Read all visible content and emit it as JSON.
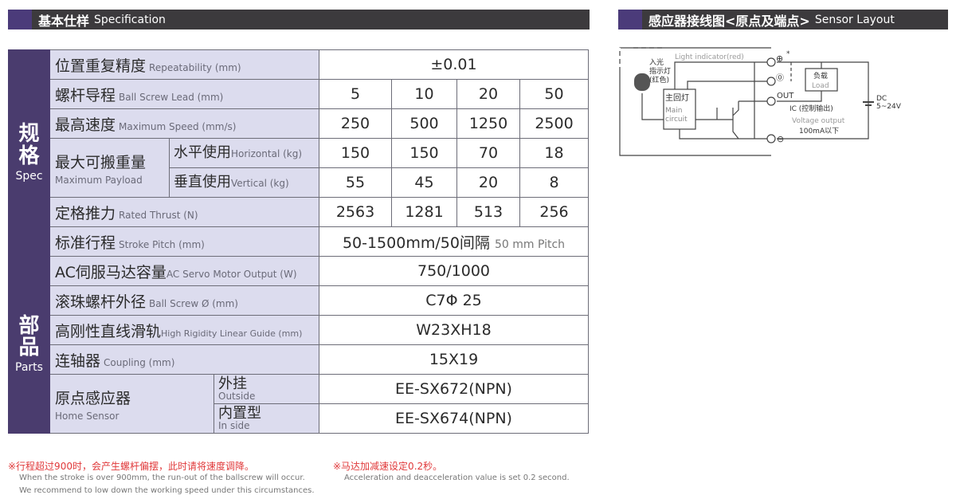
{
  "spec_header": {
    "zh": "基本仕样",
    "en": "Specification"
  },
  "sensor_header": {
    "zh": "感应器接线图<原点及端点>",
    "en": "Sensor Layout"
  },
  "sections": {
    "spec": {
      "zh": "规格",
      "en": "Spec"
    },
    "parts": {
      "zh": "部品",
      "en": "Parts"
    }
  },
  "rows": {
    "repeatability": {
      "zh": "位置重复精度",
      "en": "Repeatability (mm)",
      "value": "±0.01"
    },
    "lead": {
      "zh": "螺杆导程",
      "en": "Ball Screw Lead (mm)",
      "values": [
        "5",
        "10",
        "20",
        "50"
      ]
    },
    "speed": {
      "zh": "最高速度",
      "en": "Maximum Speed (mm/s)",
      "values": [
        "250",
        "500",
        "1250",
        "2500"
      ]
    },
    "payload": {
      "zh": "最大可搬重量",
      "en": "Maximum Payload",
      "horizontal": {
        "zh": "水平使用",
        "en": "Horizontal (kg)",
        "values": [
          "150",
          "150",
          "70",
          "18"
        ]
      },
      "vertical": {
        "zh": "垂直使用",
        "en": "Vertical (kg)",
        "values": [
          "55",
          "45",
          "20",
          "8"
        ]
      }
    },
    "thrust": {
      "zh": "定格推力",
      "en": "Rated Thrust (N)",
      "values": [
        "2563",
        "1281",
        "513",
        "256"
      ]
    },
    "stroke": {
      "zh": "标准行程",
      "en": "Stroke Pitch (mm)",
      "value": "50-1500mm/50间隔",
      "value_en": "50 mm Pitch"
    },
    "motor": {
      "zh": "AC伺服马达容量",
      "en": "AC Servo Motor Output (W)",
      "value": "750/1000"
    },
    "screw": {
      "zh": "滚珠螺杆外径",
      "en": "Ball Screw Ø (mm)",
      "value": "C7Φ 25"
    },
    "guide": {
      "zh": "高刚性直线滑轨",
      "en": "High Rigidity Linear Guide (mm)",
      "value": "W23XH18"
    },
    "coupling": {
      "zh": "连轴器",
      "en": "Coupling (mm)",
      "value": "15X19"
    },
    "sensor": {
      "zh": "原点感应器",
      "en": "Home Sensor",
      "outside": {
        "zh": "外挂",
        "en": "Outside",
        "value": "EE-SX672(NPN)"
      },
      "inside": {
        "zh": "内置型",
        "en": "In side",
        "value": "EE-SX674(NPN)"
      }
    }
  },
  "notes": {
    "n1_zh": "※行程超过900时，会产生螺杆偏摆，此时请将速度调降。",
    "n1_en1": "When the stroke is over 900mm, the run-out of the ballscrew will occur.",
    "n1_en2": "We recommend to low down the working speed under this circumstances.",
    "n2_zh": "※马达加减速设定0.2秒。",
    "n2_en": "Acceleration and deacceleration value is set 0.2 second."
  },
  "diagram": {
    "light_indicator": "Light indicator(red)",
    "led_zh1": "入光",
    "led_zh2": "指示灯",
    "led_zh3": "(红色)",
    "main_zh": "主回灯",
    "main_en1": "Main",
    "main_en2": "circuit",
    "plus": "⊕",
    "star": "*",
    "minus": "⊖",
    "ctrl": "⓪",
    "out": "OUT",
    "load_zh": "负载",
    "load_en": "Load",
    "ic": "IC (控制输出)",
    "voltage": "Voltage output",
    "current": "100mA以下",
    "dc": "DC",
    "dc_range": "5~24V"
  },
  "colors": {
    "header": "#3c3a3d",
    "accent": "#4b3b7a",
    "label_bg": "#dcdcee",
    "note_red": "#e0393a"
  }
}
